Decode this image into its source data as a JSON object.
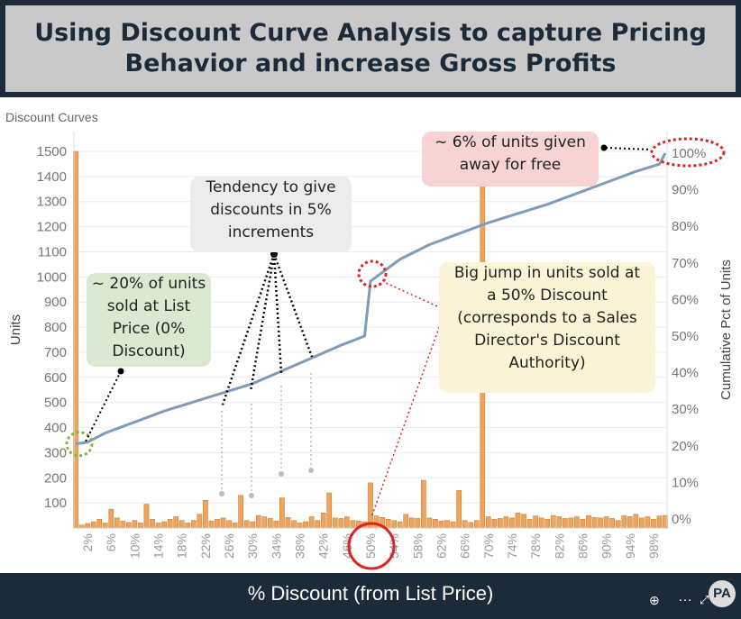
{
  "title": {
    "line1": "Using Discount Curve Analysis to capture Pricing",
    "line2": "Behavior and increase Gross Profits"
  },
  "subtitle": "Discount Curves",
  "footer": {
    "xlabel": "% Discount (from List Price)",
    "zoom_icon": "zoom-icon",
    "more_icon": "more-options-icon",
    "expand_icon": "expand-icon",
    "logo_text": "PA"
  },
  "annotations": {
    "green": [
      "~ 20% of units",
      "sold at List",
      "Price (0%",
      "Discount)"
    ],
    "gray": [
      "Tendency to give",
      "discounts in 5%",
      "increments"
    ],
    "pink": [
      "~ 6% of units given",
      "away for free"
    ],
    "yellow": [
      "Big jump in units sold at",
      "a 50% Discount",
      "(corresponds to a Sales",
      "Director's Discount",
      "Authority)"
    ]
  },
  "colors": {
    "bar": "#f0a35a",
    "bar_edge": "#c27a35",
    "line": "#7f9bb8",
    "title_bg": "#1c2b3a",
    "title_box": "#c9c9c9",
    "green_marker": "#7db83a",
    "red_marker": "#e02020"
  },
  "chart_data": {
    "type": "bar+line",
    "xlabel": "% Discount (from List Price)",
    "ylabel": "Units",
    "y2label": "Cumulative Pct of Units",
    "ylim": [
      0,
      1500
    ],
    "y2lim": [
      0,
      100
    ],
    "yticks": [
      "100",
      "200",
      "300",
      "400",
      "500",
      "600",
      "700",
      "800",
      "900",
      "1000",
      "1100",
      "1200",
      "1300",
      "1400",
      "1500"
    ],
    "y2ticks": [
      "0%",
      "10%",
      "20%",
      "30%",
      "40%",
      "50%",
      "60%",
      "70%",
      "80%",
      "90%",
      "100%"
    ],
    "xtick_labels": [
      "2%",
      "6%",
      "10%",
      "14%",
      "18%",
      "22%",
      "26%",
      "30%",
      "34%",
      "38%",
      "42%",
      "46%",
      "50%",
      "54%",
      "58%",
      "62%",
      "66%",
      "70%",
      "74%",
      "78%",
      "82%",
      "86%",
      "90%",
      "94%",
      "98%"
    ],
    "bars": {
      "name": "Units",
      "x": [
        0,
        1,
        2,
        3,
        4,
        5,
        6,
        7,
        8,
        9,
        10,
        11,
        12,
        13,
        14,
        15,
        16,
        17,
        18,
        19,
        20,
        21,
        22,
        23,
        24,
        25,
        26,
        27,
        28,
        29,
        30,
        31,
        32,
        33,
        34,
        35,
        36,
        37,
        38,
        39,
        40,
        41,
        42,
        43,
        44,
        45,
        46,
        47,
        48,
        49,
        50,
        51,
        52,
        53,
        54,
        55,
        56,
        57,
        58,
        59,
        60,
        61,
        62,
        63,
        64,
        65,
        66,
        67,
        68,
        69,
        70,
        71,
        72,
        73,
        74,
        75,
        76,
        77,
        78,
        79,
        80,
        81,
        82,
        83,
        84,
        85,
        86,
        87,
        88,
        89,
        90,
        91,
        92,
        93,
        94,
        95,
        96,
        97,
        98,
        99,
        100
      ],
      "values": [
        1500,
        12,
        18,
        25,
        35,
        20,
        75,
        40,
        28,
        22,
        30,
        20,
        95,
        35,
        20,
        25,
        35,
        45,
        30,
        20,
        30,
        55,
        110,
        28,
        35,
        40,
        30,
        20,
        130,
        30,
        25,
        50,
        45,
        38,
        28,
        120,
        42,
        30,
        20,
        25,
        45,
        30,
        60,
        140,
        40,
        38,
        45,
        30,
        28,
        25,
        180,
        48,
        42,
        35,
        30,
        25,
        55,
        40,
        38,
        190,
        40,
        35,
        28,
        30,
        25,
        150,
        30,
        22,
        30,
        1400,
        45,
        35,
        38,
        45,
        40,
        60,
        55,
        35,
        48,
        40,
        35,
        50,
        45,
        38,
        40,
        45,
        35,
        50,
        42,
        40,
        45,
        38,
        30,
        50,
        45,
        55,
        40,
        45,
        35,
        48,
        50
      ]
    },
    "line": {
      "name": "Cumulative Pct of Units",
      "x": [
        0,
        2,
        5,
        10,
        15,
        20,
        25,
        30,
        35,
        40,
        45,
        49,
        50,
        55,
        60,
        65,
        70,
        75,
        80,
        85,
        90,
        95,
        99,
        100
      ],
      "values": [
        20.5,
        21,
        23.5,
        26.5,
        29.5,
        32,
        34.5,
        37,
        40.5,
        44,
        47.5,
        50,
        65,
        71,
        75,
        78,
        81,
        83.5,
        86,
        89,
        92,
        95,
        97,
        100
      ]
    },
    "annotations": [
      "~ 20% of units sold at List Price (0% Discount)",
      "Tendency to give discounts in 5% increments",
      "~ 6% of units given away for free",
      "Big jump in units sold at a 50% Discount (corresponds to a Sales Director's Discount Authority)"
    ]
  }
}
